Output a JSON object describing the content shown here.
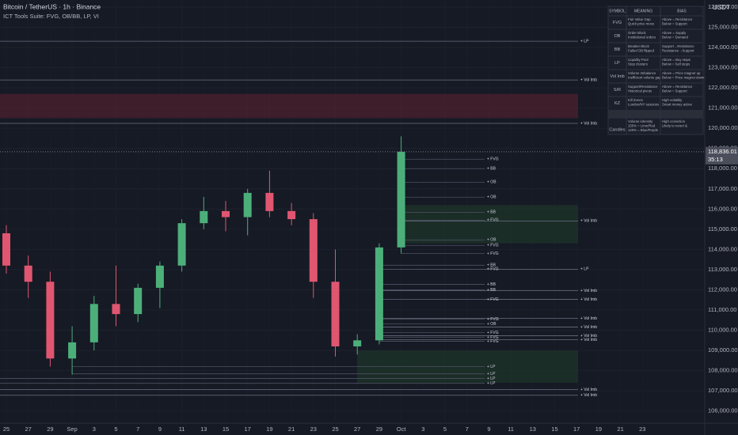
{
  "chart_data": {
    "type": "candlestick",
    "title": "Bitcoin / TetherUS · 1h · Binance",
    "subtitle": "ICT Tools Suite: FVG, OB/BB, LP, VI",
    "currency": "USDT",
    "categories": [
      "25",
      "27",
      "29",
      "Sep",
      "3",
      "5",
      "7",
      "9",
      "11",
      "13",
      "15",
      "17",
      "19",
      "21",
      "23",
      "25",
      "27",
      "29",
      "Oct",
      "3",
      "5",
      "7",
      "9",
      "11",
      "13",
      "15",
      "17",
      "19",
      "21",
      "23"
    ],
    "open": [
      114800,
      113200,
      112400,
      108600,
      109400,
      111300,
      110800,
      112100,
      113200,
      115300,
      115900,
      115600,
      116800,
      115900,
      115500,
      112400,
      109200,
      109500,
      114100,
      null,
      null,
      null,
      null,
      null,
      null,
      null,
      null,
      null,
      null,
      null
    ],
    "high": [
      115200,
      113700,
      112900,
      110200,
      111700,
      113200,
      112300,
      113400,
      115500,
      116600,
      116400,
      117000,
      117900,
      116300,
      115800,
      114000,
      109800,
      114300,
      119600,
      null,
      null,
      null,
      null,
      null,
      null,
      null,
      null,
      null,
      null,
      null
    ],
    "low": [
      112800,
      111600,
      108200,
      107800,
      109000,
      110200,
      110400,
      111100,
      112900,
      115000,
      114900,
      114700,
      115600,
      115200,
      111600,
      108700,
      108800,
      109300,
      113800,
      null,
      null,
      null,
      null,
      null,
      null,
      null,
      null,
      null,
      null,
      null
    ],
    "close": [
      113200,
      112400,
      108600,
      109400,
      111300,
      110800,
      112100,
      113200,
      115300,
      115900,
      115600,
      116800,
      115900,
      115500,
      112400,
      109200,
      109500,
      114100,
      118836.01,
      null,
      null,
      null,
      null,
      null,
      null,
      null,
      null,
      null,
      null,
      null
    ],
    "up_color": "#4caf7a",
    "down_color": "#e05670",
    "ylim": [
      105400,
      126350
    ],
    "yticks": [
      {
        "value": 106000,
        "label": "106,000.00"
      },
      {
        "value": 107000,
        "label": "107,000.00"
      },
      {
        "value": 108000,
        "label": "108,000.00"
      },
      {
        "value": 109000,
        "label": "109,000.00"
      },
      {
        "value": 110000,
        "label": "110,000.00"
      },
      {
        "value": 111000,
        "label": "111,000.00"
      },
      {
        "value": 112000,
        "label": "112,000.00"
      },
      {
        "value": 113000,
        "label": "113,000.00"
      },
      {
        "value": 114000,
        "label": "114,000.00"
      },
      {
        "value": 115000,
        "label": "115,000.00"
      },
      {
        "value": 116000,
        "label": "116,000.00"
      },
      {
        "value": 117000,
        "label": "117,000.00"
      },
      {
        "value": 118000,
        "label": "118,000.00"
      },
      {
        "value": 119000,
        "label": "119,000.00"
      },
      {
        "value": 120000,
        "label": "120,000.00"
      },
      {
        "value": 121000,
        "label": "121,000.00"
      },
      {
        "value": 122000,
        "label": "122,000.00"
      },
      {
        "value": 123000,
        "label": "123,000.00"
      },
      {
        "value": 124000,
        "label": "124,000.00"
      },
      {
        "value": 125000,
        "label": "125,000.00"
      },
      {
        "value": 126000,
        "label": "126,000.00"
      }
    ],
    "last_price": {
      "value": 118836.01,
      "label": "118,836.01"
    },
    "countdown": "35:13",
    "levels_far": [
      {
        "label": "+ LP",
        "value": 124310
      },
      {
        "label": "+ Vol Imb",
        "value": 122390
      },
      {
        "label": "+ Vol Imb",
        "value": 120240
      },
      {
        "label": "+ Vol Imb",
        "value": 115410
      },
      {
        "label": "+ LP",
        "value": 113020
      },
      {
        "label": "+ Vol Imb",
        "value": 111960
      },
      {
        "label": "+ Vol Imb",
        "value": 111530
      },
      {
        "label": "+ Vol Imb",
        "value": 110590
      },
      {
        "label": "+ Vol Imb",
        "value": 110160
      },
      {
        "label": "+ Vol Imb",
        "value": 109730
      },
      {
        "label": "+ Vol Imb",
        "value": 109530
      },
      {
        "label": "+ Vol Imb",
        "value": 107060
      },
      {
        "label": "+ Vol Imb",
        "value": 106780
      }
    ],
    "levels_near": [
      {
        "label": "+ FVG",
        "value": 118470
      },
      {
        "label": "+ BB",
        "value": 118000
      },
      {
        "label": "+ OB",
        "value": 117330
      },
      {
        "label": "+ OB",
        "value": 116590
      },
      {
        "label": "+ BB",
        "value": 115840
      },
      {
        "label": "+ FVG",
        "value": 115450
      },
      {
        "label": "+ OB",
        "value": 114470
      },
      {
        "label": "+ FVG",
        "value": 114200
      },
      {
        "label": "+ FVG",
        "value": 113800
      },
      {
        "label": "+ BB",
        "value": 113220
      },
      {
        "label": "+ FVG",
        "value": 113020
      },
      {
        "label": "+ BB",
        "value": 112270
      },
      {
        "label": "+ BB",
        "value": 112000
      },
      {
        "label": "+ FVG",
        "value": 111530
      },
      {
        "label": "+ FVG",
        "value": 110550
      },
      {
        "label": "+ OB",
        "value": 110310
      },
      {
        "label": "+ FVG",
        "value": 109880
      },
      {
        "label": "+ FVG",
        "value": 109650
      },
      {
        "label": "+ FVG",
        "value": 109450
      },
      {
        "label": "+ LP",
        "value": 108200
      },
      {
        "label": "+ LP",
        "value": 107840
      },
      {
        "label": "+ LP",
        "value": 107610
      },
      {
        "label": "+ LP",
        "value": 107370
      }
    ],
    "boxes": [
      {
        "low": 120500,
        "high": 121700,
        "color": "#5a2230"
      },
      {
        "low": 114300,
        "high": 116200,
        "color": "#1f3a2a"
      },
      {
        "low": 107400,
        "high": 109000,
        "color": "#1f3a2a"
      }
    ]
  },
  "legend_table": {
    "header": [
      "SYMBOL",
      "MEANING",
      "BIAS"
    ],
    "rows": [
      [
        "FVG",
        [
          "Fair Value Gap",
          "Quick price move"
        ],
        [
          "Above = Resistance",
          "Below = Support"
        ]
      ],
      [
        "OB",
        [
          "Order Block",
          "Institutional orders"
        ],
        [
          "Above = Supply",
          "Below = Demand"
        ]
      ],
      [
        "BB",
        [
          "Breaker Block",
          "Failed OB flipped"
        ],
        [
          "Support→Resistance",
          "Resistance→Support"
        ]
      ],
      [
        "LP",
        [
          "Liquidity Pool",
          "Stop clusters"
        ],
        [
          "Above = Buy stops",
          "Below = Sell stops"
        ]
      ],
      [
        "Vol Imb",
        [
          "Volume Imbalance",
          "Inefficient volume gap"
        ],
        [
          "Above = Price magnet up",
          "Below = Price magnet down"
        ]
      ],
      [
        "S/R",
        [
          "Support/Resistance",
          "Historical pivots"
        ],
        [
          "Above = Resistance",
          "Below = Support"
        ]
      ],
      [
        "KZ",
        [
          "Kill Zones",
          "London/NY sessions"
        ],
        [
          "High volatility",
          "Smart money active"
        ]
      ],
      [
        "Candles",
        [
          "Volume intensity",
          "150% = Lime/Red",
          "120% = Blue/Purple"
        ],
        [
          "High conviction",
          "Likely to revert &"
        ]
      ]
    ]
  }
}
